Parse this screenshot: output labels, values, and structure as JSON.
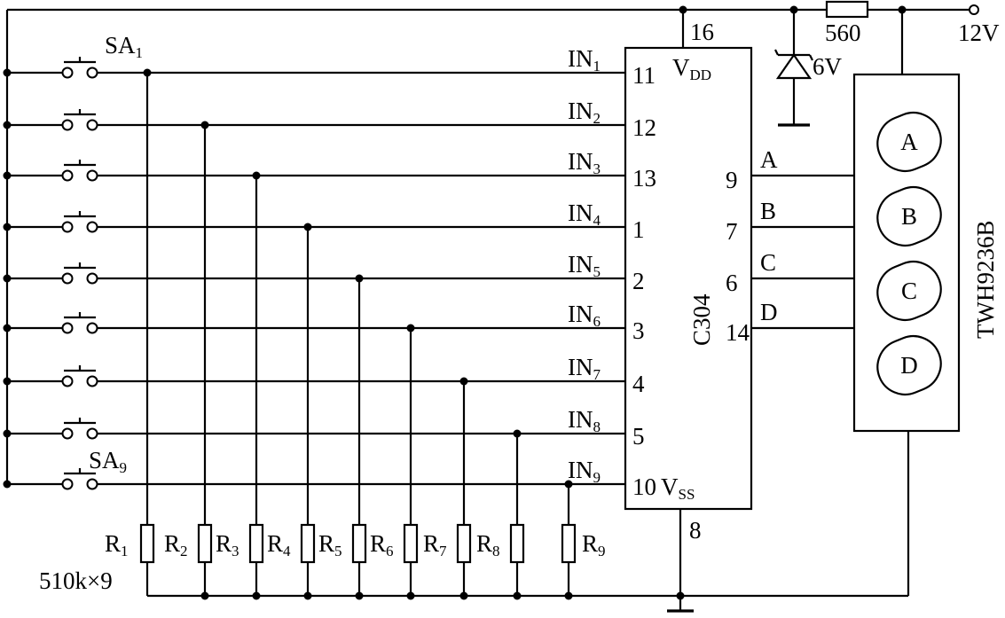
{
  "supply": {
    "voltage": "12V",
    "resistor": "560",
    "zener": "6V"
  },
  "chip": {
    "name": "C304",
    "vdd_label": "V",
    "vdd_sub": "DD",
    "vss_label": "V",
    "vss_sub": "SS",
    "vdd_pin": "16",
    "vss_pin": "8"
  },
  "switches": {
    "first_label": "SA",
    "first_sub": "1",
    "last_label": "SA",
    "last_sub": "9"
  },
  "inputs": [
    {
      "name": "IN",
      "sub": "1",
      "pin": "11"
    },
    {
      "name": "IN",
      "sub": "2",
      "pin": "12"
    },
    {
      "name": "IN",
      "sub": "3",
      "pin": "13"
    },
    {
      "name": "IN",
      "sub": "4",
      "pin": "1"
    },
    {
      "name": "IN",
      "sub": "5",
      "pin": "2"
    },
    {
      "name": "IN",
      "sub": "6",
      "pin": "3"
    },
    {
      "name": "IN",
      "sub": "7",
      "pin": "4"
    },
    {
      "name": "IN",
      "sub": "8",
      "pin": "5"
    },
    {
      "name": "IN",
      "sub": "9",
      "pin": "10"
    }
  ],
  "outputs": [
    {
      "name": "A",
      "pin": "9"
    },
    {
      "name": "B",
      "pin": "7"
    },
    {
      "name": "C",
      "pin": "6"
    },
    {
      "name": "D",
      "pin": "14"
    }
  ],
  "resistors": [
    {
      "name": "R",
      "sub": "1"
    },
    {
      "name": "R",
      "sub": "2"
    },
    {
      "name": "R",
      "sub": "3"
    },
    {
      "name": "R",
      "sub": "4"
    },
    {
      "name": "R",
      "sub": "5"
    },
    {
      "name": "R",
      "sub": "6"
    },
    {
      "name": "R",
      "sub": "7"
    },
    {
      "name": "R",
      "sub": "8"
    },
    {
      "name": "R",
      "sub": "9"
    }
  ],
  "resistor_value": "510k×9",
  "display": {
    "name": "TWH9236B",
    "segments": [
      "A",
      "B",
      "C",
      "D"
    ]
  }
}
